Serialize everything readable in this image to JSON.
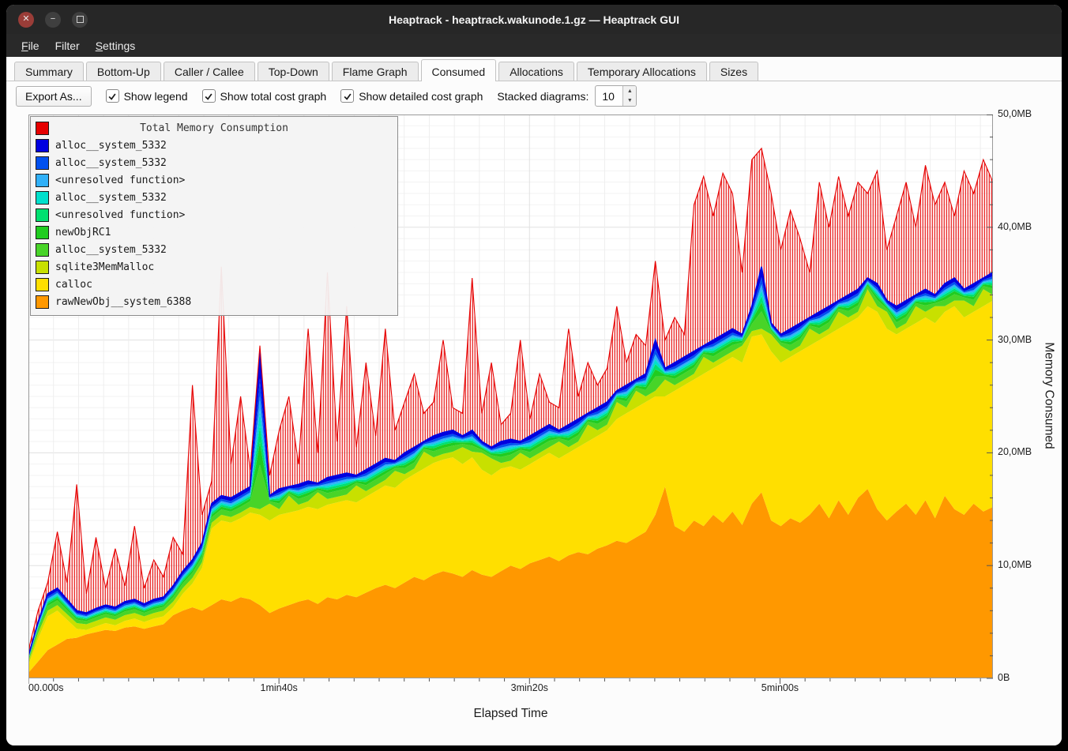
{
  "window": {
    "title": "Heaptrack - heaptrack.wakunode.1.gz — Heaptrack GUI"
  },
  "titlebar": {
    "buttons": [
      "close",
      "minimize",
      "maximize"
    ]
  },
  "menu": {
    "items": [
      {
        "label": "File"
      },
      {
        "label": "Filter"
      },
      {
        "label": "Settings"
      }
    ]
  },
  "tabs": [
    {
      "label": "Summary",
      "active": false
    },
    {
      "label": "Bottom-Up",
      "active": false
    },
    {
      "label": "Caller / Callee",
      "active": false
    },
    {
      "label": "Top-Down",
      "active": false
    },
    {
      "label": "Flame Graph",
      "active": false
    },
    {
      "label": "Consumed",
      "active": true
    },
    {
      "label": "Allocations",
      "active": false
    },
    {
      "label": "Temporary Allocations",
      "active": false
    },
    {
      "label": "Sizes",
      "active": false
    }
  ],
  "toolbar": {
    "export_label": "Export As...",
    "checkboxes": [
      {
        "label": "Show legend",
        "checked": true
      },
      {
        "label": "Show total cost graph",
        "checked": true
      },
      {
        "label": "Show detailed cost graph",
        "checked": true
      }
    ],
    "stacked_label": "Stacked diagrams:",
    "stacked_value": "10"
  },
  "chart": {
    "legend_title": "Total Memory Consumption",
    "legend_title_color": "#e60000",
    "legend_items": [
      {
        "color": "#0000e0",
        "label": "alloc__system_5332"
      },
      {
        "color": "#0050f0",
        "label": "alloc__system_5332"
      },
      {
        "color": "#30b0f8",
        "label": "<unresolved function>"
      },
      {
        "color": "#00e0cc",
        "label": "alloc__system_5332"
      },
      {
        "color": "#00e070",
        "label": "<unresolved function>"
      },
      {
        "color": "#20cc20",
        "label": "newObjRC1"
      },
      {
        "color": "#48d428",
        "label": "alloc__system_5332"
      },
      {
        "color": "#c8e000",
        "label": "sqlite3MemMalloc"
      },
      {
        "color": "#ffdf00",
        "label": "calloc"
      },
      {
        "color": "#ff9800",
        "label": "rawNewObj__system_6388"
      }
    ],
    "x_ticks": [
      {
        "t": 0,
        "label": "00.000s"
      },
      {
        "t": 100,
        "label": "1min40s"
      },
      {
        "t": 200,
        "label": "3min20s"
      },
      {
        "t": 300,
        "label": "5min00s"
      }
    ],
    "y_ticks": [
      {
        "v": 0,
        "label": "0B"
      },
      {
        "v": 10,
        "label": "10,0MB"
      },
      {
        "v": 20,
        "label": "20,0MB"
      },
      {
        "v": 30,
        "label": "30,0MB"
      },
      {
        "v": 40,
        "label": "40,0MB"
      },
      {
        "v": 50,
        "label": "50,0MB"
      }
    ],
    "xlabel": "Elapsed Time",
    "ylabel": "Memory Consumed"
  },
  "chart_data": {
    "type": "area",
    "stacked": true,
    "title": "Total Memory Consumption",
    "xlabel": "Elapsed Time",
    "ylabel": "Memory Consumed",
    "x_unit": "s",
    "y_unit": "MB",
    "xlim": [
      0,
      385
    ],
    "ylim": [
      0,
      50
    ],
    "grid": true,
    "legend_position": "top-left",
    "x": {
      "start": 0,
      "step": 3.85,
      "count": 101
    },
    "series": [
      {
        "name": "rawNewObj__system_6388",
        "color": "#ff9800",
        "top": [
          0.5,
          1.5,
          2.5,
          3.0,
          3.5,
          3.6,
          3.9,
          4.1,
          4.3,
          4.2,
          4.5,
          4.6,
          4.4,
          4.6,
          4.8,
          5.6,
          6.0,
          6.3,
          6.0,
          6.5,
          7.0,
          6.8,
          7.2,
          7.0,
          6.5,
          5.8,
          6.2,
          6.5,
          6.8,
          7.0,
          6.6,
          7.2,
          7.0,
          7.4,
          7.2,
          7.6,
          8.0,
          8.3,
          8.0,
          8.5,
          9.0,
          8.7,
          9.2,
          9.5,
          9.3,
          9.0,
          9.6,
          9.2,
          9.0,
          9.5,
          10.0,
          9.7,
          10.2,
          10.5,
          10.8,
          10.4,
          10.9,
          11.2,
          11.0,
          11.5,
          11.8,
          12.2,
          12.0,
          12.5,
          13.0,
          14.5,
          17.0,
          13.5,
          13.0,
          14.0,
          13.5,
          14.5,
          13.8,
          14.8,
          13.6,
          15.5,
          16.5,
          14.0,
          13.5,
          14.2,
          13.8,
          14.5,
          15.5,
          14.2,
          15.8,
          14.5,
          16.0,
          16.8,
          15.0,
          14.0,
          14.8,
          15.5,
          14.5,
          15.8,
          14.2,
          16.2,
          15.0,
          14.5,
          15.5,
          14.8,
          15.2
        ]
      },
      {
        "name": "calloc",
        "color": "#ffdf00",
        "top": [
          1.2,
          3.5,
          5.5,
          6.0,
          5.2,
          4.4,
          4.3,
          4.6,
          4.9,
          4.7,
          5.1,
          5.3,
          5.0,
          5.3,
          5.5,
          6.3,
          7.5,
          8.4,
          9.8,
          13.3,
          14.0,
          13.8,
          14.2,
          14.7,
          14.5,
          14.0,
          14.5,
          14.7,
          14.9,
          15.2,
          15.0,
          15.4,
          15.6,
          15.8,
          15.6,
          16.1,
          16.6,
          17.1,
          16.9,
          17.6,
          18.1,
          18.6,
          19.1,
          19.4,
          19.6,
          19.0,
          19.6,
          18.5,
          18.0,
          18.6,
          18.8,
          18.5,
          19.0,
          19.5,
          20.0,
          19.5,
          20.0,
          20.5,
          21.0,
          21.5,
          22.0,
          23.0,
          23.5,
          24.0,
          24.5,
          25.0,
          25.0,
          25.5,
          26.0,
          26.5,
          27.0,
          27.5,
          28.0,
          28.5,
          28.0,
          30.3,
          30.5,
          29.0,
          28.0,
          28.5,
          29.0,
          29.5,
          30.0,
          30.5,
          31.0,
          31.5,
          32.0,
          33.0,
          32.5,
          31.0,
          30.5,
          31.0,
          31.5,
          32.0,
          31.5,
          32.5,
          33.0,
          32.0,
          32.5,
          33.0,
          33.5
        ]
      },
      {
        "name": "sqlite3MemMalloc",
        "color": "#c8e000",
        "top": [
          1.5,
          4.0,
          6.0,
          6.5,
          5.7,
          4.9,
          4.8,
          5.1,
          5.4,
          5.2,
          5.6,
          5.8,
          5.5,
          5.8,
          6.0,
          6.8,
          8.0,
          8.9,
          10.3,
          13.8,
          14.5,
          14.3,
          14.7,
          15.2,
          15.0,
          15.5,
          15.0,
          16.2,
          15.4,
          15.7,
          16.5,
          15.9,
          16.1,
          16.3,
          17.1,
          16.6,
          17.1,
          17.6,
          18.4,
          18.1,
          18.6,
          20.1,
          19.6,
          19.9,
          20.1,
          20.5,
          20.1,
          20.0,
          19.5,
          19.1,
          19.3,
          20.0,
          19.5,
          20.0,
          20.5,
          21.0,
          20.5,
          21.0,
          22.5,
          22.0,
          22.5,
          24.5,
          24.0,
          25.5,
          25.0,
          25.5,
          26.5,
          26.0,
          26.5,
          27.0,
          28.5,
          28.0,
          28.5,
          29.0,
          29.5,
          30.8,
          31.0,
          30.5,
          29.5,
          29.0,
          29.5,
          31.0,
          30.5,
          31.0,
          32.5,
          32.0,
          32.5,
          34.5,
          33.0,
          32.5,
          31.0,
          31.5,
          33.0,
          32.5,
          33.0,
          33.0,
          33.5,
          33.5,
          33.0,
          34.5,
          34.0
        ]
      },
      {
        "name": "alloc__system_5332",
        "color": "#48d428",
        "frac": 0.28
      },
      {
        "name": "newObjRC1",
        "color": "#20cc20",
        "frac": 0.2
      },
      {
        "name": "<unresolved function>",
        "color": "#00e070",
        "frac": 0.18
      },
      {
        "name": "alloc__system_5332",
        "color": "#00e0cc",
        "frac": 0.2
      },
      {
        "name": "<unresolved function>",
        "color": "#30b0f8",
        "frac": 0.25
      },
      {
        "name": "alloc__system_5332",
        "color": "#0050f0",
        "frac": 0.4
      },
      {
        "name": "alloc__system_5332",
        "color": "#0000e0",
        "line": true,
        "top": [
          2.0,
          5.0,
          7.5,
          8.0,
          7.0,
          6.0,
          5.8,
          6.2,
          6.5,
          6.3,
          6.8,
          7.0,
          6.6,
          7.0,
          7.2,
          8.2,
          9.5,
          10.5,
          12.0,
          15.5,
          16.2,
          16.0,
          16.5,
          17.0,
          29.0,
          16.2,
          16.8,
          17.0,
          17.2,
          17.5,
          17.3,
          17.8,
          18.0,
          18.2,
          18.0,
          18.5,
          19.0,
          19.5,
          19.3,
          20.0,
          20.5,
          21.0,
          21.5,
          21.8,
          22.0,
          21.5,
          22.0,
          21.0,
          20.5,
          21.0,
          21.2,
          21.0,
          21.5,
          22.0,
          22.5,
          22.0,
          22.5,
          23.0,
          23.5,
          24.0,
          24.5,
          25.5,
          26.0,
          26.5,
          27.0,
          30.0,
          27.5,
          28.0,
          28.5,
          29.0,
          29.5,
          30.0,
          30.5,
          31.0,
          30.5,
          33.0,
          36.5,
          31.5,
          30.5,
          31.0,
          31.5,
          32.0,
          32.5,
          33.0,
          33.5,
          34.0,
          34.5,
          35.5,
          35.0,
          33.5,
          33.0,
          33.5,
          34.0,
          34.5,
          34.0,
          35.0,
          35.5,
          34.5,
          35.0,
          35.5,
          36.0
        ]
      },
      {
        "name": "Total Memory Consumption",
        "color": "#e60000",
        "hatch": true,
        "top": [
          2.5,
          6.0,
          8.5,
          13.0,
          8.5,
          17.2,
          7.5,
          12.5,
          8.0,
          11.5,
          8.2,
          13.5,
          8.0,
          10.5,
          9.0,
          12.5,
          11.0,
          26.0,
          14.5,
          17.5,
          36.5,
          19.0,
          25.0,
          18.5,
          29.5,
          18.0,
          22.0,
          25.0,
          19.0,
          31.0,
          20.0,
          36.0,
          21.0,
          33.0,
          20.5,
          28.0,
          21.5,
          31.0,
          22.0,
          24.5,
          27.0,
          23.5,
          24.5,
          30.0,
          24.0,
          23.5,
          35.5,
          23.5,
          28.0,
          22.5,
          23.5,
          30.0,
          23.0,
          27.0,
          24.5,
          24.0,
          31.0,
          25.0,
          28.0,
          26.0,
          27.5,
          33.0,
          28.0,
          30.5,
          29.5,
          37.0,
          30.0,
          32.0,
          30.5,
          42.0,
          44.5,
          41.0,
          44.8,
          43.0,
          36.0,
          46.0,
          47.0,
          43.0,
          38.0,
          41.5,
          39.0,
          36.0,
          44.0,
          40.0,
          44.5,
          41.0,
          44.0,
          43.0,
          45.0,
          38.0,
          41.0,
          44.0,
          40.0,
          45.5,
          42.0,
          44.0,
          41.0,
          45.0,
          43.0,
          46.0,
          44.0
        ]
      }
    ]
  }
}
